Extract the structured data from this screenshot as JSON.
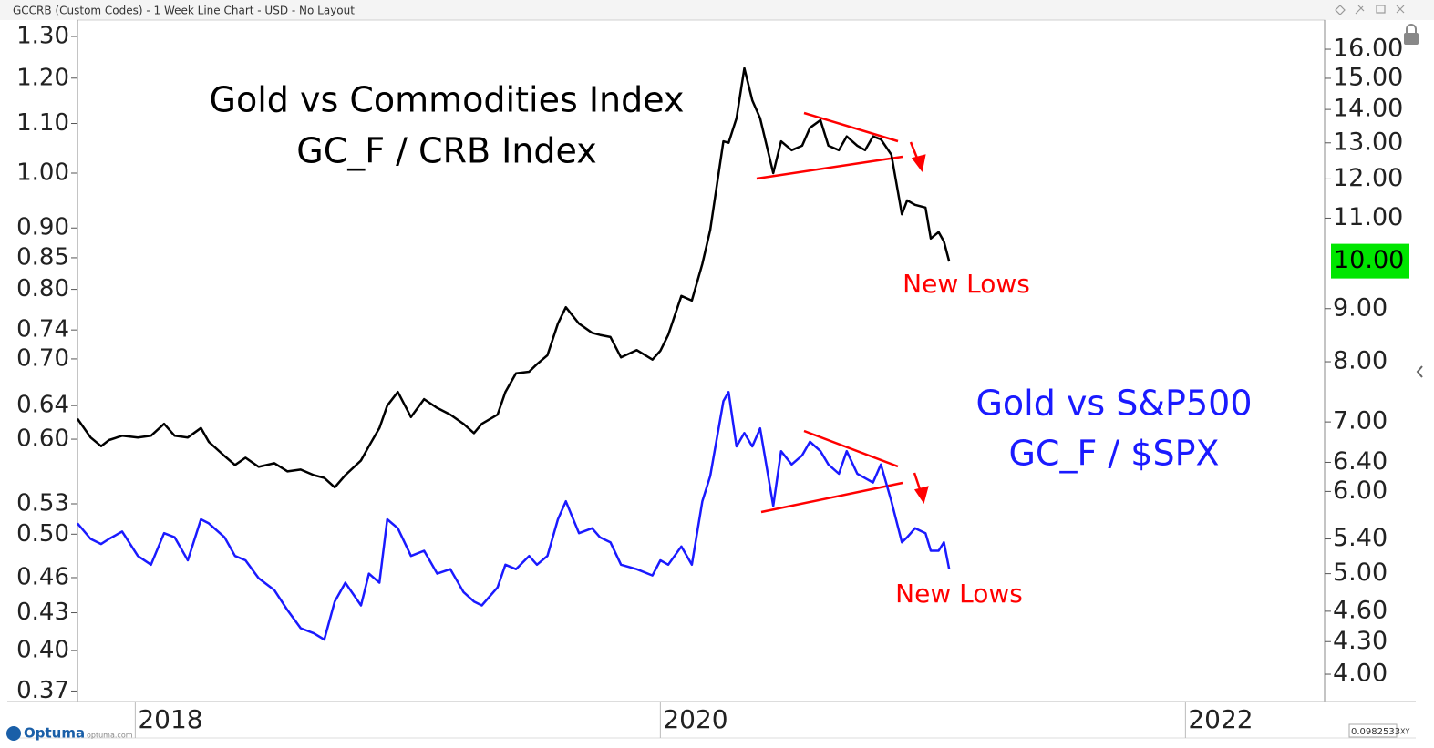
{
  "header": {
    "title": "GCCRB (Custom Codes) - 1 Week Line Chart - USD - No Layout"
  },
  "footer": {
    "brand": "Optuma",
    "site": "optuma.com",
    "readout": "0.0982533",
    "mode": "XY"
  },
  "chart_data": {
    "type": "line",
    "annotations": [
      {
        "text": "Gold vs Commodities Index",
        "color": "#000000"
      },
      {
        "text": "GC_F / CRB Index",
        "color": "#000000"
      },
      {
        "text": "New Lows",
        "color": "#ff0000"
      },
      {
        "text": "Gold vs S&P500",
        "color": "#1a1aff"
      },
      {
        "text": "GC_F / $SPX",
        "color": "#1a1aff"
      },
      {
        "text": "New Lows",
        "color": "#ff0000"
      }
    ],
    "x": [
      2017.78,
      2017.83,
      2017.87,
      2017.9,
      2017.95,
      2018.01,
      2018.06,
      2018.11,
      2018.15,
      2018.2,
      2018.25,
      2018.28,
      2018.34,
      2018.38,
      2018.42,
      2018.47,
      2018.53,
      2018.58,
      2018.63,
      2018.68,
      2018.72,
      2018.76,
      2018.8,
      2018.86,
      2018.89,
      2018.93,
      2018.96,
      2019.0,
      2019.05,
      2019.1,
      2019.15,
      2019.2,
      2019.25,
      2019.29,
      2019.32,
      2019.38,
      2019.41,
      2019.45,
      2019.5,
      2019.53,
      2019.57,
      2019.61,
      2019.64,
      2019.69,
      2019.74,
      2019.77,
      2019.81,
      2019.85,
      2019.91,
      2019.97,
      2020.0,
      2020.03,
      2020.08,
      2020.12,
      2020.16,
      2020.19,
      2020.24,
      2020.26,
      2020.29,
      2020.32,
      2020.35,
      2020.38,
      2020.43,
      2020.46,
      2020.5,
      2020.54,
      2020.57,
      2020.61,
      2020.64,
      2020.68,
      2020.71,
      2020.75,
      2020.78,
      2020.81,
      2020.84,
      2020.88,
      2020.92,
      2020.94,
      2020.97,
      2021.01,
      2021.03,
      2021.06,
      2021.08,
      2021.1
    ],
    "series": [
      {
        "name": "GC_F / CRB Index",
        "color": "#000000",
        "axis": "y",
        "values": [
          0.624,
          0.602,
          0.592,
          0.599,
          0.604,
          0.602,
          0.604,
          0.618,
          0.604,
          0.602,
          0.613,
          0.597,
          0.581,
          0.571,
          0.579,
          0.569,
          0.573,
          0.564,
          0.566,
          0.56,
          0.557,
          0.547,
          0.56,
          0.576,
          0.592,
          0.613,
          0.64,
          0.657,
          0.626,
          0.648,
          0.637,
          0.629,
          0.618,
          0.607,
          0.618,
          0.629,
          0.657,
          0.681,
          0.683,
          0.693,
          0.705,
          0.749,
          0.773,
          0.749,
          0.736,
          0.733,
          0.73,
          0.702,
          0.712,
          0.699,
          0.711,
          0.733,
          0.79,
          0.783,
          0.84,
          0.897,
          1.063,
          1.06,
          1.111,
          1.223,
          1.15,
          1.111,
          1.0,
          1.063,
          1.045,
          1.054,
          1.091,
          1.107,
          1.054,
          1.045,
          1.073,
          1.054,
          1.045,
          1.073,
          1.067,
          1.036,
          0.924,
          0.949,
          0.941,
          0.936,
          0.882,
          0.893,
          0.877,
          0.844
        ]
      },
      {
        "name": "GC_F / $SPX",
        "color": "#1a1aff",
        "axis": "y2",
        "values": [
          5.59,
          5.4,
          5.34,
          5.4,
          5.49,
          5.2,
          5.1,
          5.47,
          5.42,
          5.15,
          5.64,
          5.59,
          5.42,
          5.2,
          5.15,
          4.95,
          4.82,
          4.61,
          4.43,
          4.38,
          4.32,
          4.7,
          4.9,
          4.66,
          5.0,
          4.9,
          5.64,
          5.53,
          5.2,
          5.26,
          5.0,
          5.05,
          4.8,
          4.7,
          4.66,
          4.85,
          5.1,
          5.05,
          5.2,
          5.1,
          5.2,
          5.64,
          5.87,
          5.47,
          5.53,
          5.42,
          5.36,
          5.1,
          5.05,
          4.98,
          5.15,
          5.1,
          5.31,
          5.1,
          5.87,
          6.21,
          7.33,
          7.48,
          6.63,
          6.83,
          6.63,
          6.9,
          5.81,
          6.56,
          6.37,
          6.5,
          6.7,
          6.56,
          6.37,
          6.24,
          6.56,
          6.24,
          6.18,
          6.12,
          6.37,
          5.87,
          5.36,
          5.42,
          5.53,
          5.47,
          5.26,
          5.26,
          5.36,
          5.05
        ]
      }
    ],
    "xlim": [
      2017.78,
      2022.53
    ],
    "xticks": [
      2018,
      2020,
      2022
    ],
    "ylog": true,
    "ylim": [
      0.3626,
      1.3416
    ],
    "yticks": [
      {
        "value": 1.3,
        "label": "1.30"
      },
      {
        "value": 1.2,
        "label": "1.20"
      },
      {
        "value": 1.1,
        "label": "1.10"
      },
      {
        "value": 1.0,
        "label": "1.00"
      },
      {
        "value": 0.9,
        "label": "0.90"
      },
      {
        "value": 0.85,
        "label": "0.85"
      },
      {
        "value": 0.8,
        "label": "0.80"
      },
      {
        "value": 0.74,
        "label": "0.74"
      },
      {
        "value": 0.7,
        "label": "0.70"
      },
      {
        "value": 0.64,
        "label": "0.64"
      },
      {
        "value": 0.6,
        "label": "0.60"
      },
      {
        "value": 0.53,
        "label": "0.53"
      },
      {
        "value": 0.5,
        "label": "0.50"
      },
      {
        "value": 0.46,
        "label": "0.46"
      },
      {
        "value": 0.43,
        "label": "0.43"
      },
      {
        "value": 0.4,
        "label": "0.40"
      },
      {
        "value": 0.37,
        "label": "0.37"
      }
    ],
    "y2log": true,
    "y2lim": [
      3.765,
      17.07
    ],
    "y2ticks": [
      {
        "value": 16,
        "label": "16.00"
      },
      {
        "value": 15,
        "label": "15.00"
      },
      {
        "value": 14,
        "label": "14.00"
      },
      {
        "value": 13,
        "label": "13.00"
      },
      {
        "value": 12,
        "label": "12.00"
      },
      {
        "value": 11,
        "label": "11.00"
      },
      {
        "value": 9,
        "label": "9.00"
      },
      {
        "value": 8,
        "label": "8.00"
      },
      {
        "value": 7,
        "label": "7.00"
      },
      {
        "value": 6.4,
        "label": "6.40"
      },
      {
        "value": 6,
        "label": "6.00"
      },
      {
        "value": 5.4,
        "label": "5.40"
      },
      {
        "value": 5,
        "label": "5.00"
      },
      {
        "value": 4.6,
        "label": "4.60"
      },
      {
        "value": 4.3,
        "label": "4.30"
      },
      {
        "value": 4,
        "label": "4.00"
      }
    ],
    "y2_marker": {
      "value": 10,
      "label": "10.00",
      "color": "#00e600"
    },
    "grid": false
  }
}
